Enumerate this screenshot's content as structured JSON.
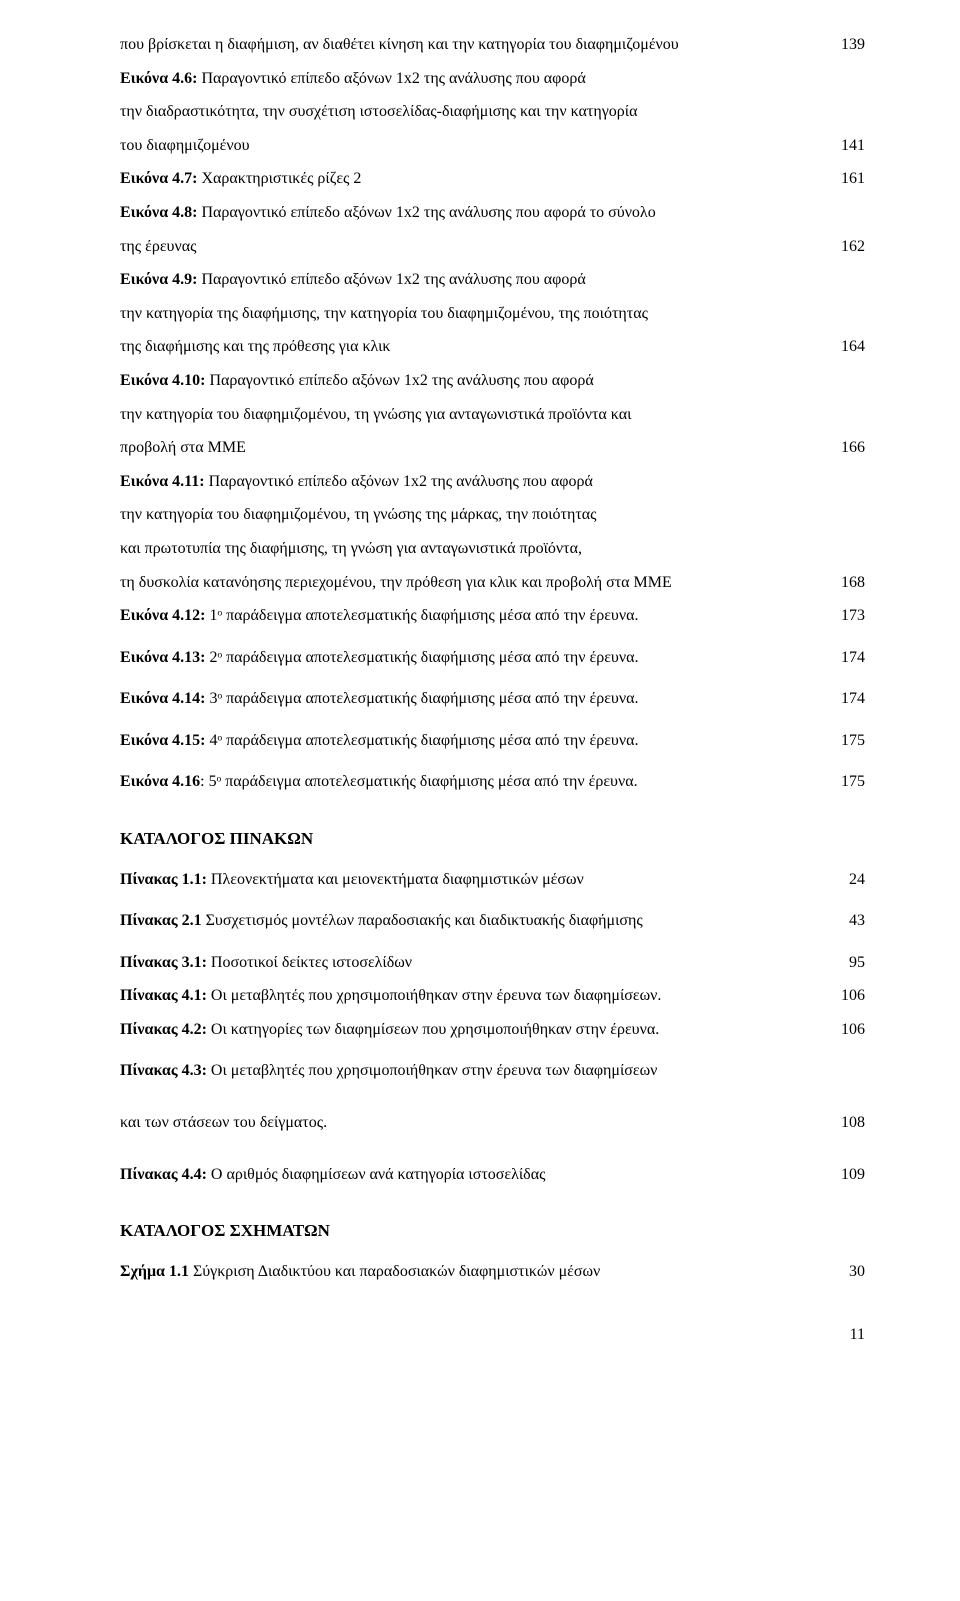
{
  "entries": [
    {
      "text_parts": [
        [
          "που βρίσκεται η διαφήμιση, αν διαθέτει κίνηση και την κατηγορία του διαφημιζομένου",
          false
        ]
      ],
      "page": "139"
    },
    {
      "text_parts": [
        [
          "Εικόνα 4.6:",
          true
        ],
        [
          " Παραγοντικό επίπεδο αξόνων 1x2 της ανάλυσης που αφορά",
          false
        ]
      ],
      "page": ""
    },
    {
      "text_parts": [
        [
          "την διαδραστικότητα, την συσχέτιση ιστοσελίδας-διαφήμισης και την κατηγορία",
          false
        ]
      ],
      "page": ""
    },
    {
      "text_parts": [
        [
          "του διαφημιζομένου",
          false
        ]
      ],
      "page": "141"
    },
    {
      "text_parts": [
        [
          "Εικόνα 4.7:",
          true
        ],
        [
          " Χαρακτηριστικές ρίζες 2",
          false
        ]
      ],
      "page": "161"
    },
    {
      "text_parts": [
        [
          "Εικόνα 4.8:",
          true
        ],
        [
          " Παραγοντικό επίπεδο αξόνων 1x2 της ανάλυσης που αφορά το σύνολο",
          false
        ]
      ],
      "page": ""
    },
    {
      "text_parts": [
        [
          "της έρευνας",
          false
        ]
      ],
      "page": "162"
    },
    {
      "text_parts": [
        [
          "Εικόνα 4.9:",
          true
        ],
        [
          " Παραγοντικό επίπεδο αξόνων 1x2 της ανάλυσης που αφορά",
          false
        ]
      ],
      "page": ""
    },
    {
      "text_parts": [
        [
          "την κατηγορία της διαφήμισης, την κατηγορία του διαφημιζομένου, της ποιότητας",
          false
        ]
      ],
      "page": ""
    },
    {
      "text_parts": [
        [
          "της διαφήμισης και της πρόθεσης για κλικ",
          false
        ]
      ],
      "page": "164"
    },
    {
      "text_parts": [
        [
          "Εικόνα 4.10:",
          true
        ],
        [
          " Παραγοντικό επίπεδο αξόνων 1x2 της ανάλυσης που αφορά",
          false
        ]
      ],
      "page": ""
    },
    {
      "text_parts": [
        [
          "την κατηγορία του διαφημιζομένου, τη γνώσης για ανταγωνιστικά προϊόντα και",
          false
        ]
      ],
      "page": ""
    },
    {
      "text_parts": [
        [
          "προβολή στα ΜΜΕ",
          false
        ]
      ],
      "page": "166"
    },
    {
      "text_parts": [
        [
          "Εικόνα 4.11:",
          true
        ],
        [
          " Παραγοντικό επίπεδο αξόνων 1x2 της ανάλυσης που αφορά",
          false
        ]
      ],
      "page": ""
    },
    {
      "text_parts": [
        [
          "την κατηγορία του διαφημιζομένου, τη γνώσης της μάρκας, την ποιότητας",
          false
        ]
      ],
      "page": ""
    },
    {
      "text_parts": [
        [
          "και πρωτοτυπία της διαφήμισης, τη γνώση για ανταγωνιστικά προϊόντα,",
          false
        ]
      ],
      "page": ""
    },
    {
      "text_parts": [
        [
          "τη δυσκολία κατανόησης περιεχομένου, την πρόθεση για κλικ και προβολή στα ΜΜΕ",
          false
        ]
      ],
      "page": "168"
    },
    {
      "text_parts": [
        [
          "Εικόνα 4.12:",
          true
        ],
        [
          " 1ᵒ παράδειγμα αποτελεσματικής διαφήμισης μέσα από την έρευνα.",
          false
        ]
      ],
      "page": "173"
    },
    {
      "text_parts": [
        [
          "Εικόνα 4.13:",
          true
        ],
        [
          " 2ᵒ παράδειγμα αποτελεσματικής διαφήμισης μέσα από την έρευνα.",
          false
        ]
      ],
      "page": "174",
      "spaced": true
    },
    {
      "text_parts": [
        [
          "Εικόνα 4.14:",
          true
        ],
        [
          " 3ᵒ παράδειγμα αποτελεσματικής διαφήμισης μέσα από την έρευνα.",
          false
        ]
      ],
      "page": "174",
      "spaced": true
    },
    {
      "text_parts": [
        [
          "Εικόνα 4.15:",
          true
        ],
        [
          " 4ᵒ παράδειγμα αποτελεσματικής διαφήμισης μέσα από την έρευνα.",
          false
        ]
      ],
      "page": "175",
      "spaced": true
    },
    {
      "text_parts": [
        [
          "Εικόνα 4.16",
          true
        ],
        [
          ": 5ᵒ παράδειγμα αποτελεσματικής διαφήμισης μέσα από την έρευνα.",
          false
        ]
      ],
      "page": "175",
      "spaced": true
    }
  ],
  "heading1": "ΚΑΤΑΛΟΓΟΣ ΠΙΝΑΚΩΝ",
  "tables": [
    {
      "text_parts": [
        [
          "Πίνακας 1.1:",
          true
        ],
        [
          " Πλεονεκτήματα και μειονεκτήματα διαφημιστικών μέσων",
          false
        ]
      ],
      "page": "24"
    },
    {
      "text_parts": [
        [
          "Πίνακας 2.1",
          true
        ],
        [
          " Συσχετισμός μοντέλων παραδοσιακής και διαδικτυακής διαφήμισης",
          false
        ]
      ],
      "page": "43",
      "spaced": true
    },
    {
      "text_parts": [
        [
          "Πίνακας 3.1:",
          true
        ],
        [
          " Ποσοτικοί δείκτες ιστοσελίδων",
          false
        ]
      ],
      "page": "95",
      "spaced": true
    },
    {
      "text_parts": [
        [
          "Πίνακας 4.1:",
          true
        ],
        [
          " Οι μεταβλητές που χρησιμοποιήθηκαν στην έρευνα των διαφημίσεων.",
          false
        ]
      ],
      "page": "106"
    },
    {
      "text_parts": [
        [
          "Πίνακας 4.2:",
          true
        ],
        [
          " Οι κατηγορίες των διαφημίσεων που χρησιμοποιήθηκαν στην έρευνα.",
          false
        ]
      ],
      "page": "106"
    },
    {
      "text_parts": [
        [
          "Πίνακας 4.3:",
          true
        ],
        [
          " Οι μεταβλητές που χρησιμοποιήθηκαν στην έρευνα των διαφημίσεων",
          false
        ]
      ],
      "page": "",
      "spaced": true
    },
    {
      "text_parts": [
        [
          "και των στάσεων του δείγματος.",
          false
        ]
      ],
      "page": "108",
      "spaced_big": true
    },
    {
      "text_parts": [
        [
          "Πίνακας 4.4:",
          true
        ],
        [
          " Ο αριθμός διαφημίσεων ανά κατηγορία ιστοσελίδας",
          false
        ]
      ],
      "page": "109",
      "spaced_big": true
    }
  ],
  "heading2": "ΚΑΤΑΛΟΓΟΣ ΣΧΗΜΑΤΩΝ",
  "figures": [
    {
      "text_parts": [
        [
          "Σχήμα 1.1",
          true
        ],
        [
          " Σύγκριση Διαδικτύου και παραδοσιακών διαφημιστικών μέσων",
          false
        ]
      ],
      "page": "30"
    }
  ],
  "page_number": "11"
}
